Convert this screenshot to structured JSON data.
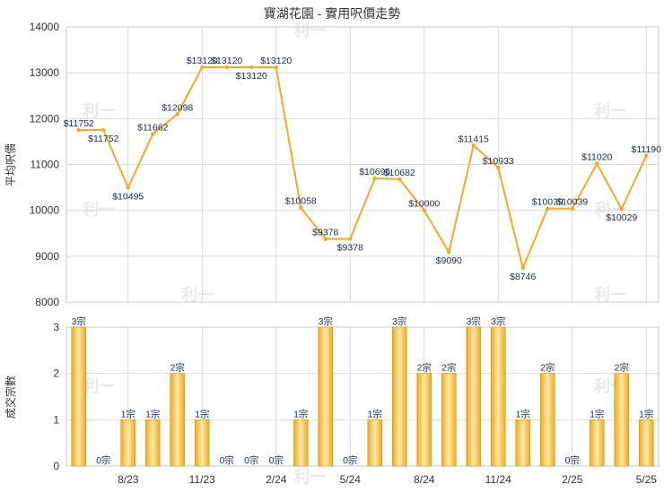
{
  "title": "寶湖花園 - 實用呎價走勢",
  "colors": {
    "line": "#f7a825",
    "bar_edge": "#d99a10",
    "bar_light": "#fde9a8",
    "bar_dark": "#f0a81c",
    "label": "#1a2a55",
    "watermark": "#e8e8e8"
  },
  "watermark_text": "利一",
  "chart_data": [
    {
      "type": "line",
      "ylabel": "平均呎價",
      "ylim": [
        8000,
        14000
      ],
      "yticks": [
        "8000",
        "9000",
        "10000",
        "11000",
        "12000",
        "13000",
        "14000"
      ],
      "x": [
        "6/23",
        "7/23",
        "8/23",
        "9/23",
        "10/23",
        "11/23",
        "12/23",
        "1/24",
        "2/24",
        "3/24",
        "4/24",
        "5/24",
        "6/24",
        "7/24",
        "8/24",
        "9/24",
        "10/24",
        "11/24",
        "12/24",
        "1/25",
        "2/25",
        "3/25",
        "4/25",
        "5/25"
      ],
      "values": [
        11752,
        11752,
        10495,
        11662,
        12098,
        13120,
        13120,
        13120,
        13120,
        10058,
        9378,
        9378,
        10695,
        10682,
        10000,
        9090,
        11415,
        10933,
        8746,
        10039,
        10039,
        11020,
        10029,
        11190
      ],
      "data_labels": [
        "$11752",
        "$11752",
        "$10495",
        "$11662",
        "$12098",
        "$13120",
        "$13120",
        "$13120",
        "$13120",
        "$10058",
        "$9378",
        "$9378",
        "$10695",
        "$10682",
        "$10000",
        "$9090",
        "$11415",
        "$10933",
        "$8746",
        "$10039",
        "$10039",
        "$11020",
        "$10029",
        "$11190"
      ]
    },
    {
      "type": "bar",
      "ylabel": "成交宗數",
      "ylim": [
        0,
        3
      ],
      "yticks": [
        "0",
        "1",
        "2",
        "3"
      ],
      "x": [
        "6/23",
        "7/23",
        "8/23",
        "9/23",
        "10/23",
        "11/23",
        "12/23",
        "1/24",
        "2/24",
        "3/24",
        "4/24",
        "5/24",
        "6/24",
        "7/24",
        "8/24",
        "9/24",
        "10/24",
        "11/24",
        "12/24",
        "1/25",
        "2/25",
        "3/25",
        "4/25",
        "5/25"
      ],
      "values": [
        3,
        0,
        1,
        1,
        2,
        1,
        0,
        0,
        0,
        1,
        3,
        0,
        1,
        3,
        2,
        2,
        3,
        3,
        1,
        2,
        0,
        1,
        2,
        1
      ],
      "data_labels": [
        "3宗",
        "0宗",
        "1宗",
        "1宗",
        "2宗",
        "1宗",
        "0宗",
        "0宗",
        "0宗",
        "1宗",
        "3宗",
        "0宗",
        "1宗",
        "3宗",
        "2宗",
        "2宗",
        "3宗",
        "3宗",
        "1宗",
        "2宗",
        "0宗",
        "1宗",
        "2宗",
        "1宗"
      ],
      "xtick_labels": [
        "8/23",
        "11/23",
        "2/24",
        "5/24",
        "8/24",
        "11/24",
        "2/25",
        "5/25"
      ]
    }
  ]
}
